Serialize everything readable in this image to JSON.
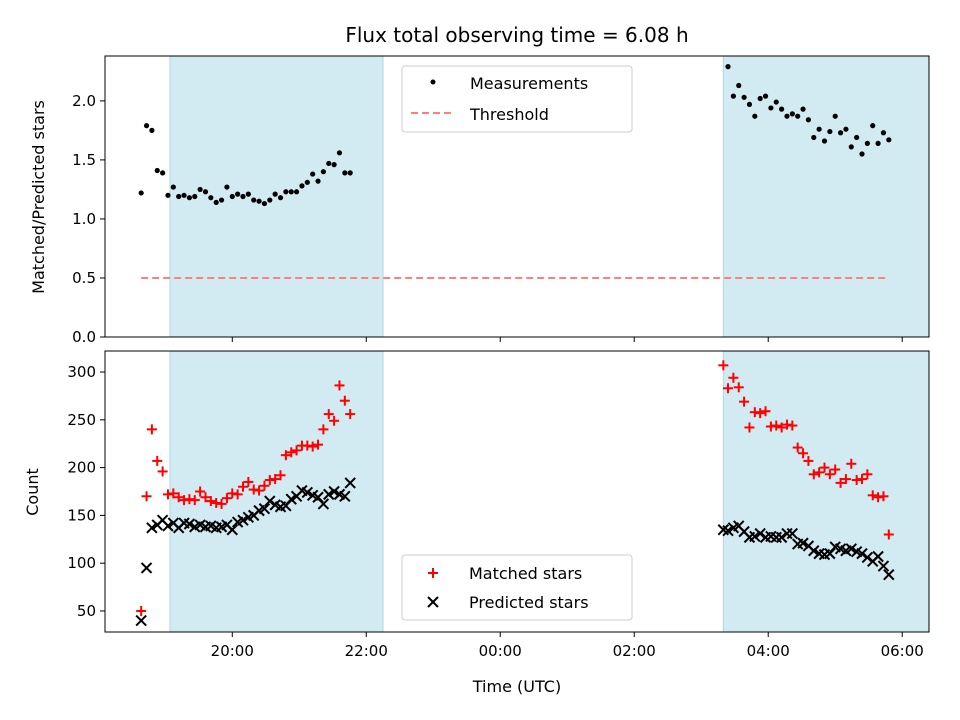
{
  "chart_data": {
    "type": "scatter",
    "title": "Flux total observing time = 6.08 h",
    "xlabel": "Time (UTC)",
    "x_tick_labels": [
      "20:00",
      "22:00",
      "00:00",
      "02:00",
      "04:00",
      "06:00"
    ],
    "x_tick_hours": [
      20,
      22,
      24,
      26,
      28,
      30
    ],
    "xlim_hours": [
      18.1,
      30.4
    ],
    "shaded_spans_hours": [
      [
        19.07,
        22.25
      ],
      [
        27.33,
        30.77
      ]
    ],
    "colors": {
      "shade": "#add8e6",
      "measurements": "#000000",
      "threshold": "#ff7f7f",
      "matched": "#ff0000",
      "predicted": "#000000"
    },
    "top": {
      "ylabel": "Matched/Predicted stars",
      "ylim": [
        0,
        2.38
      ],
      "yticks": [
        0,
        0.5,
        1.0,
        1.5,
        2.0
      ],
      "ytick_labels": [
        "0.0",
        "0.5",
        "1.0",
        "1.5",
        "2.0"
      ],
      "legend": {
        "measurements": "Measurements",
        "threshold": "Threshold"
      },
      "legend_placement": "upper center",
      "threshold": {
        "value": 0.5,
        "x_from": 18.64,
        "x_to": 29.77
      },
      "measurements": {
        "x": [
          18.64,
          18.72,
          18.8,
          18.88,
          18.96,
          19.04,
          19.12,
          19.2,
          19.28,
          19.36,
          19.44,
          19.52,
          19.6,
          19.68,
          19.76,
          19.84,
          19.92,
          20.0,
          20.08,
          20.16,
          20.24,
          20.32,
          20.4,
          20.48,
          20.56,
          20.64,
          20.72,
          20.8,
          20.88,
          20.96,
          21.04,
          21.12,
          21.2,
          21.28,
          21.36,
          21.44,
          21.52,
          21.6,
          21.68,
          21.76,
          27.4,
          27.48,
          27.56,
          27.64,
          27.72,
          27.8,
          27.88,
          27.96,
          28.04,
          28.12,
          28.2,
          28.28,
          28.36,
          28.44,
          28.52,
          28.6,
          28.68,
          28.76,
          28.84,
          28.92,
          29.0,
          29.08,
          29.16,
          29.24,
          29.32,
          29.4,
          29.48,
          29.56,
          29.64,
          29.72,
          29.8
        ],
        "y": [
          1.22,
          1.79,
          1.75,
          1.41,
          1.39,
          1.2,
          1.27,
          1.19,
          1.2,
          1.18,
          1.19,
          1.25,
          1.23,
          1.18,
          1.14,
          1.16,
          1.27,
          1.19,
          1.21,
          1.19,
          1.21,
          1.16,
          1.15,
          1.13,
          1.16,
          1.21,
          1.18,
          1.23,
          1.23,
          1.23,
          1.28,
          1.31,
          1.38,
          1.32,
          1.4,
          1.47,
          1.46,
          1.56,
          1.39,
          1.39,
          2.29,
          2.04,
          2.13,
          2.03,
          1.97,
          1.87,
          2.02,
          2.04,
          1.94,
          1.99,
          1.93,
          1.87,
          1.89,
          1.87,
          1.93,
          1.84,
          1.69,
          1.76,
          1.66,
          1.74,
          1.87,
          1.73,
          1.76,
          1.61,
          1.69,
          1.55,
          1.64,
          1.79,
          1.64,
          1.73,
          1.67
        ]
      }
    },
    "bottom": {
      "ylabel": "Count",
      "ylim": [
        28,
        322
      ],
      "yticks": [
        50,
        100,
        150,
        200,
        250,
        300
      ],
      "ytick_labels": [
        "50",
        "100",
        "150",
        "200",
        "250",
        "300"
      ],
      "legend": {
        "matched": "Matched stars",
        "predicted": "Predicted stars"
      },
      "legend_placement": "lower center",
      "x": [
        18.64,
        18.72,
        18.8,
        18.88,
        18.96,
        19.04,
        19.12,
        19.2,
        19.28,
        19.36,
        19.44,
        19.52,
        19.6,
        19.68,
        19.76,
        19.84,
        19.92,
        20.0,
        20.08,
        20.16,
        20.24,
        20.32,
        20.4,
        20.48,
        20.56,
        20.64,
        20.72,
        20.8,
        20.88,
        20.96,
        21.04,
        21.12,
        21.2,
        21.28,
        21.36,
        21.44,
        21.52,
        21.6,
        21.68,
        21.76,
        27.33,
        27.4,
        27.48,
        27.56,
        27.64,
        27.72,
        27.8,
        27.88,
        27.96,
        28.04,
        28.12,
        28.2,
        28.28,
        28.36,
        28.44,
        28.52,
        28.6,
        28.68,
        28.76,
        28.84,
        28.92,
        29.0,
        29.08,
        29.16,
        29.24,
        29.32,
        29.4,
        29.48,
        29.56,
        29.64,
        29.72,
        29.8
      ],
      "matched": [
        50,
        170,
        240,
        207,
        196,
        172,
        173,
        169,
        166,
        167,
        166,
        175,
        169,
        165,
        163,
        162,
        168,
        173,
        172,
        180,
        185,
        177,
        176,
        181,
        187,
        188,
        192,
        213,
        216,
        218,
        223,
        223,
        222,
        224,
        240,
        256,
        249,
        286,
        270,
        256,
        307,
        283,
        294,
        284,
        269,
        242,
        258,
        257,
        259,
        243,
        244,
        242,
        245,
        244,
        221,
        215,
        207,
        193,
        195,
        200,
        193,
        198,
        184,
        188,
        204,
        187,
        188,
        193,
        171,
        169,
        170,
        130
      ],
      "predicted": [
        40,
        95,
        137,
        140,
        145,
        139,
        142,
        137,
        142,
        141,
        138,
        140,
        138,
        139,
        137,
        138,
        140,
        135,
        143,
        145,
        148,
        150,
        155,
        157,
        165,
        161,
        159,
        160,
        167,
        170,
        176,
        174,
        171,
        169,
        162,
        172,
        175,
        172,
        170,
        184,
        135,
        134,
        137,
        139,
        133,
        127,
        128,
        131,
        127,
        128,
        127,
        127,
        131,
        131,
        120,
        121,
        118,
        113,
        110,
        109,
        110,
        117,
        115,
        113,
        115,
        112,
        110,
        106,
        102,
        107,
        97,
        88
      ]
    }
  }
}
